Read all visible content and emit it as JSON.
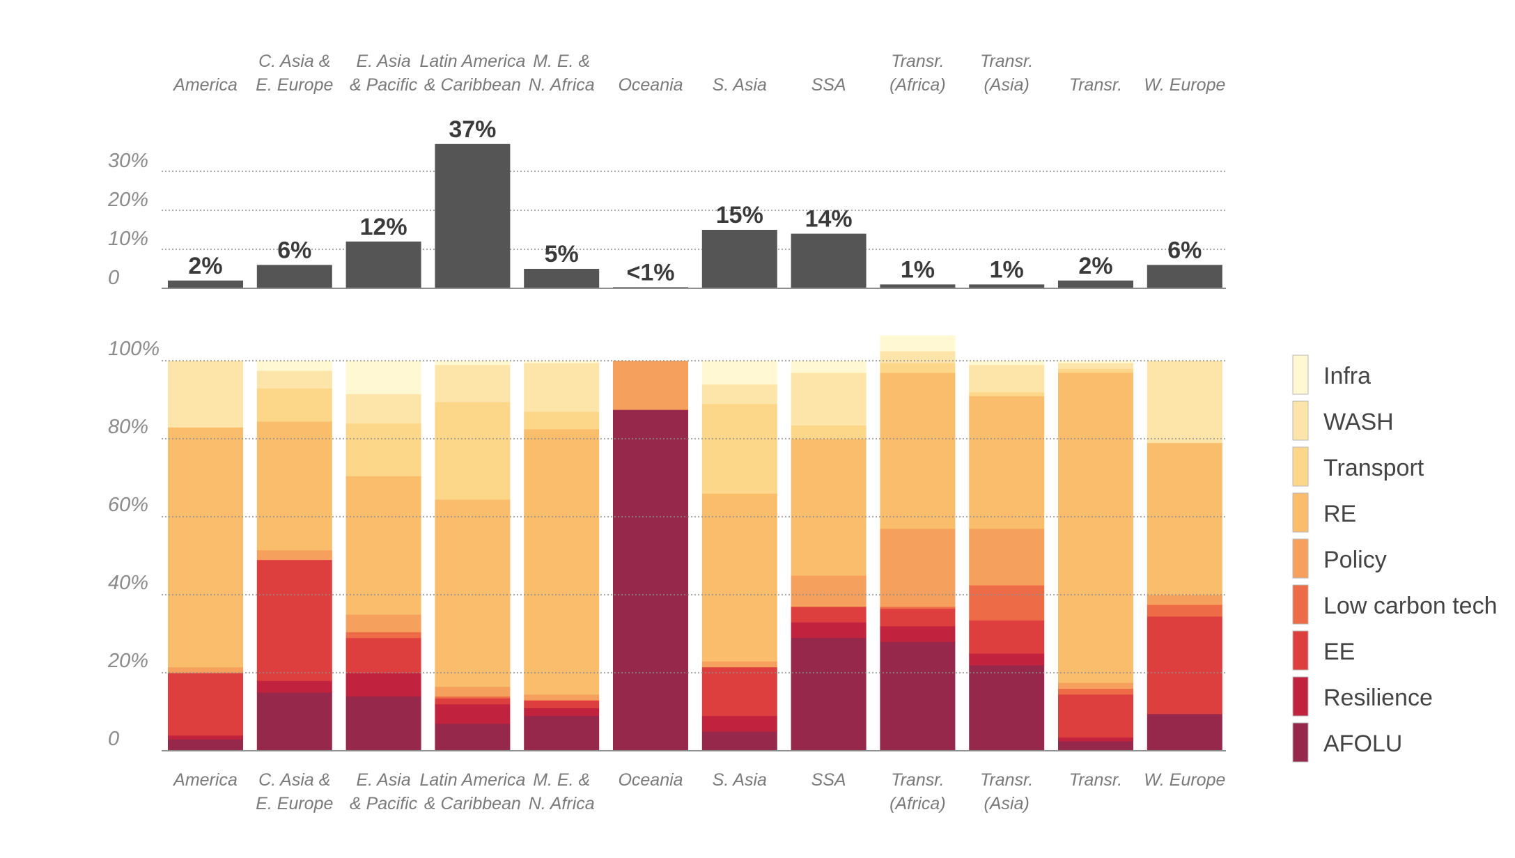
{
  "chart_data": [
    {
      "type": "bar",
      "categories": [
        [
          "America"
        ],
        [
          "C. Asia &",
          "E. Europe"
        ],
        [
          "E. Asia",
          "& Pacific"
        ],
        [
          "Latin America",
          "& Caribbean"
        ],
        [
          "M. E. &",
          "N. Africa"
        ],
        [
          "Oceania"
        ],
        [
          "S. Asia"
        ],
        [
          "SSA"
        ],
        [
          "Transr.",
          "(Africa)"
        ],
        [
          "Transr.",
          "(Asia)"
        ],
        [
          "Transr."
        ],
        [
          "W. Europe"
        ]
      ],
      "values": [
        2,
        6,
        12,
        37,
        5,
        0.3,
        15,
        14,
        1,
        1,
        2,
        6
      ],
      "data_labels": [
        "2%",
        "6%",
        "12%",
        "37%",
        "5%",
        "<1%",
        "15%",
        "14%",
        "1%",
        "1%",
        "2%",
        "6%"
      ],
      "yticks": [
        "0",
        "10%",
        "20%",
        "30%"
      ],
      "ylim": [
        0,
        30
      ],
      "grid": true,
      "color": "#555555"
    },
    {
      "type": "bar",
      "stacked": true,
      "categories": [
        [
          "America"
        ],
        [
          "C. Asia &",
          "E. Europe"
        ],
        [
          "E. Asia",
          "& Pacific"
        ],
        [
          "Latin America",
          "& Caribbean"
        ],
        [
          "M. E. &",
          "N. Africa"
        ],
        [
          "Oceania"
        ],
        [
          "S. Asia"
        ],
        [
          "SSA"
        ],
        [
          "Transr.",
          "(Africa)"
        ],
        [
          "Transr.",
          "(Asia)"
        ],
        [
          "Transr."
        ],
        [
          "W. Europe"
        ]
      ],
      "yticks": [
        "0",
        "20%",
        "40%",
        "60%",
        "80%",
        "100%"
      ],
      "ylim": [
        0,
        100
      ],
      "grid": true,
      "legend": "right",
      "series": [
        {
          "name": "AFOLU",
          "color": "#96294b",
          "values": [
            3,
            15,
            14,
            7,
            9,
            87.5,
            5,
            29,
            28,
            22,
            2.5,
            9.5
          ]
        },
        {
          "name": "Resilience",
          "color": "#c1223e",
          "values": [
            1,
            3,
            6,
            5,
            2,
            0,
            4,
            4,
            4,
            3,
            1,
            0
          ]
        },
        {
          "name": "EE",
          "color": "#dc3f3e",
          "values": [
            16,
            31,
            9,
            1.5,
            2,
            0,
            12.5,
            4,
            4.5,
            8.5,
            11,
            25
          ]
        },
        {
          "name": "Low carbon tech",
          "color": "#ee6b47",
          "values": [
            0,
            0,
            1.5,
            0.5,
            0,
            0,
            0,
            0,
            0.5,
            9,
            1.5,
            3
          ]
        },
        {
          "name": "Policy",
          "color": "#f5a05c",
          "values": [
            1.5,
            2.5,
            4.5,
            2.5,
            1.5,
            12.5,
            1.5,
            8,
            20,
            14.5,
            1.5,
            2.5
          ]
        },
        {
          "name": "RE",
          "color": "#f9bd6c",
          "values": [
            61.5,
            33,
            35.5,
            48,
            68,
            0,
            43,
            35,
            40,
            34,
            79.5,
            39
          ]
        },
        {
          "name": "Transport",
          "color": "#fcd789",
          "values": [
            0,
            8.5,
            13.5,
            25,
            4.5,
            0,
            23,
            3.5,
            2.5,
            1,
            1,
            0
          ]
        },
        {
          "name": "WASH",
          "color": "#fde4a8",
          "values": [
            17,
            4.5,
            7.5,
            9.5,
            12.5,
            0,
            5,
            13.5,
            3,
            7,
            1.5,
            21
          ]
        },
        {
          "name": "Infra",
          "color": "#fff8d2",
          "values": [
            0,
            2.5,
            8.5,
            1,
            0.5,
            0,
            6,
            3,
            4,
            1,
            0.5,
            0
          ]
        }
      ]
    }
  ]
}
